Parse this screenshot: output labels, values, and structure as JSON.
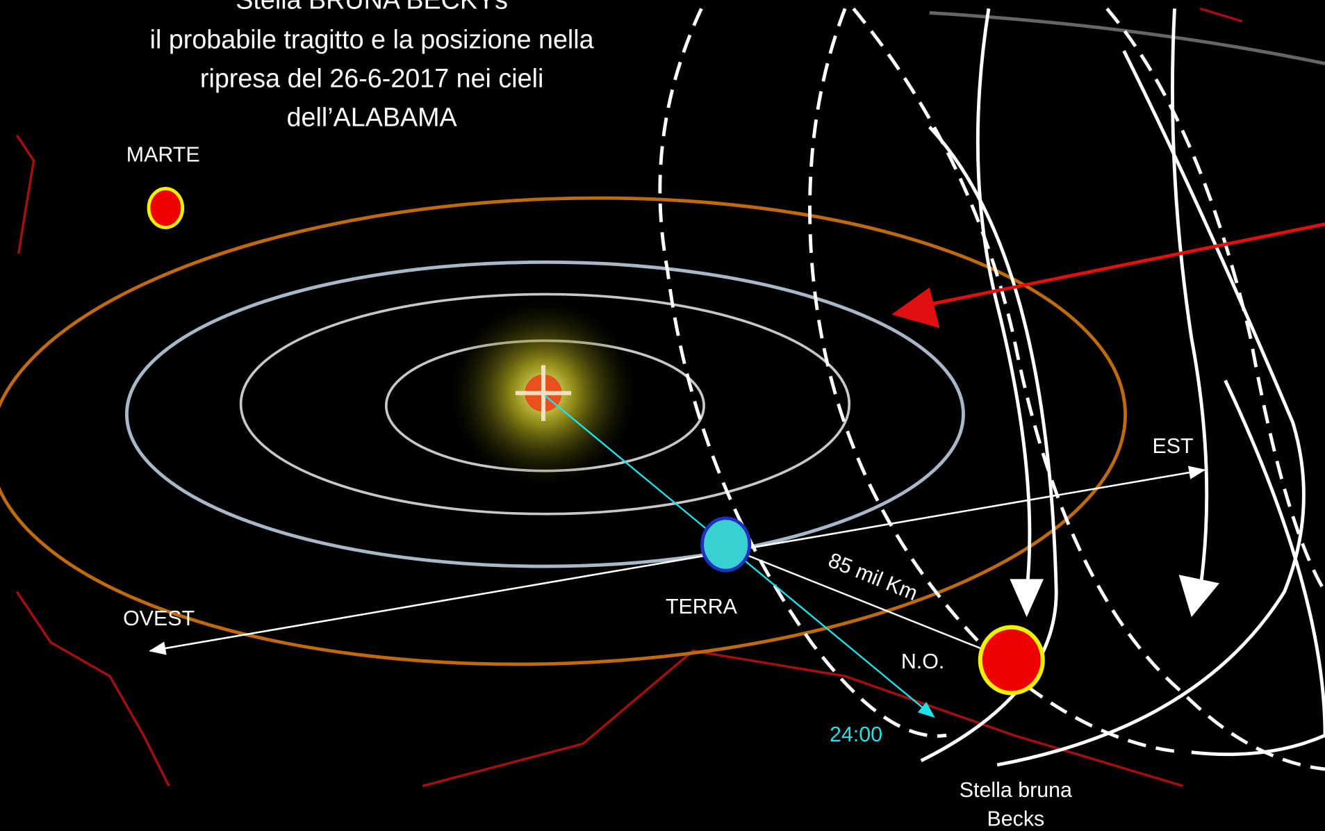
{
  "title": {
    "lines": [
      "Stella BRUNA BECKYs",
      "il probabile tragitto e la posizione nella",
      "ripresa del 26-6-2017 nei cieli",
      "dell’ALABAMA"
    ]
  },
  "labels": {
    "mars": "MARTE",
    "east": "EST",
    "west": "OVEST",
    "earth": "TERRA",
    "distance": "85 mil Km",
    "northwest": "N.O.",
    "time": "24:00",
    "star": [
      "Stella bruna",
      "Becks"
    ]
  }
}
